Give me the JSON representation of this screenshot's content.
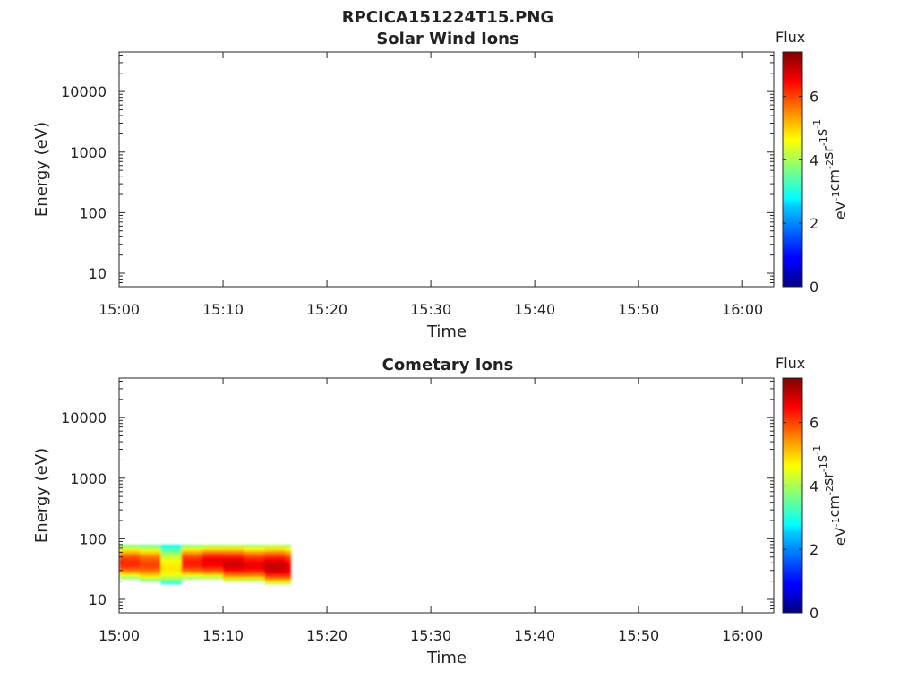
{
  "figure": {
    "filename": "RPCICA151224T15.PNG"
  },
  "chart_data": [
    {
      "type": "heatmap",
      "title": "Solar Wind Ions",
      "xlabel": "Time",
      "ylabel": "Energy (eV)",
      "x_range": [
        "15:00",
        "16:03"
      ],
      "x_ticks": [
        "15:00",
        "15:10",
        "15:20",
        "15:30",
        "15:40",
        "15:50",
        "16:00"
      ],
      "y_scale": "log",
      "y_range": [
        6,
        45000
      ],
      "y_ticks": [
        10,
        100,
        1000,
        10000
      ],
      "y_tick_labels": [
        "10",
        "100",
        "1000",
        "10000"
      ],
      "colorbar": {
        "label": "Flux",
        "unit_base": [
          "eV",
          "cm",
          "sr",
          "s"
        ],
        "unit_exp": [
          "-1",
          "-2",
          "-1",
          "-1"
        ],
        "range": [
          0,
          7.4
        ],
        "ticks": [
          "0",
          "2",
          "4",
          "6"
        ],
        "colormap": "jet"
      },
      "data": []
    },
    {
      "type": "heatmap",
      "title": "Cometary Ions",
      "xlabel": "Time",
      "ylabel": "Energy (eV)",
      "x_range": [
        "15:00",
        "16:03"
      ],
      "x_ticks": [
        "15:00",
        "15:10",
        "15:20",
        "15:30",
        "15:40",
        "15:50",
        "16:00"
      ],
      "y_scale": "log",
      "y_range": [
        6,
        45000
      ],
      "y_ticks": [
        10,
        100,
        1000,
        10000
      ],
      "y_tick_labels": [
        "10",
        "100",
        "1000",
        "10000"
      ],
      "colorbar": {
        "label": "Flux",
        "unit_base": [
          "eV",
          "cm",
          "sr",
          "s"
        ],
        "unit_exp": [
          "-1",
          "-2",
          "-1",
          "-1"
        ],
        "range": [
          0,
          7.4
        ],
        "ticks": [
          "0",
          "2",
          "4",
          "6"
        ],
        "colormap": "jet"
      },
      "data": [
        {
          "t_start": "15:00",
          "t_end": "15:02",
          "e_min": 22,
          "e_max": 80,
          "peak_flux": 6.2,
          "peak_energy": 40
        },
        {
          "t_start": "15:02",
          "t_end": "15:04",
          "e_min": 20,
          "e_max": 80,
          "peak_flux": 6.0,
          "peak_energy": 38
        },
        {
          "t_start": "15:04",
          "t_end": "15:06",
          "e_min": 18,
          "e_max": 80,
          "peak_flux": 4.8,
          "peak_energy": 32
        },
        {
          "t_start": "15:06",
          "t_end": "15:08",
          "e_min": 22,
          "e_max": 80,
          "peak_flux": 6.3,
          "peak_energy": 40
        },
        {
          "t_start": "15:08",
          "t_end": "15:10",
          "e_min": 22,
          "e_max": 80,
          "peak_flux": 6.6,
          "peak_energy": 42
        },
        {
          "t_start": "15:10",
          "t_end": "15:12",
          "e_min": 20,
          "e_max": 80,
          "peak_flux": 6.8,
          "peak_energy": 38
        },
        {
          "t_start": "15:12",
          "t_end": "15:14",
          "e_min": 20,
          "e_max": 80,
          "peak_flux": 6.6,
          "peak_energy": 36
        },
        {
          "t_start": "15:14",
          "t_end": "15:16",
          "e_min": 18,
          "e_max": 80,
          "peak_flux": 6.9,
          "peak_energy": 34
        },
        {
          "t_start": "15:16",
          "t_end": "15:16.5",
          "e_min": 18,
          "e_max": 80,
          "peak_flux": 6.7,
          "peak_energy": 32
        }
      ]
    }
  ]
}
